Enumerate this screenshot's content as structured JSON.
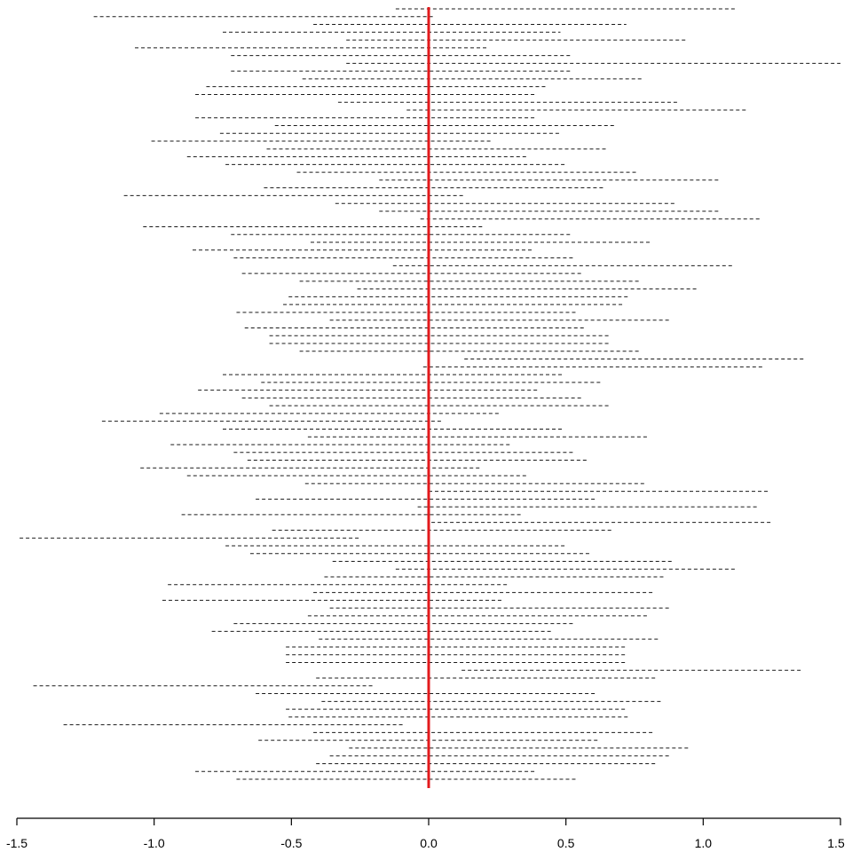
{
  "chart_data": {
    "type": "interval",
    "xlim": [
      -1.5,
      1.5
    ],
    "xticks": [
      "-1.5",
      "-1.0",
      "-0.5",
      "0.0",
      "0.5",
      "1.0",
      "1.5"
    ],
    "reference_line": {
      "x": 0.0,
      "color": "#e31a1c"
    },
    "interval_color": "#1a1a1a",
    "intervals": [
      [
        -0.12,
        1.12
      ],
      [
        -1.22,
        0.02
      ],
      [
        -0.42,
        0.72
      ],
      [
        -0.75,
        0.48
      ],
      [
        -0.3,
        0.94
      ],
      [
        -1.07,
        0.22
      ],
      [
        -0.72,
        0.52
      ],
      [
        -0.3,
        1.5
      ],
      [
        -0.72,
        0.52
      ],
      [
        -0.46,
        0.78
      ],
      [
        -0.81,
        0.43
      ],
      [
        -0.85,
        0.39
      ],
      [
        -0.33,
        0.91
      ],
      [
        -0.08,
        1.16
      ],
      [
        -0.85,
        0.39
      ],
      [
        -0.56,
        0.68
      ],
      [
        -0.76,
        0.48
      ],
      [
        -1.01,
        0.23
      ],
      [
        -0.59,
        0.65
      ],
      [
        -0.88,
        0.36
      ],
      [
        -0.74,
        0.5
      ],
      [
        -0.48,
        0.76
      ],
      [
        -0.18,
        1.06
      ],
      [
        -0.6,
        0.64
      ],
      [
        -1.11,
        0.13
      ],
      [
        -0.34,
        0.9
      ],
      [
        -0.18,
        1.06
      ],
      [
        -0.03,
        1.21
      ],
      [
        -1.04,
        0.2
      ],
      [
        -0.72,
        0.52
      ],
      [
        -0.43,
        0.81
      ],
      [
        -0.86,
        0.38
      ],
      [
        -0.71,
        0.53
      ],
      [
        -0.13,
        1.11
      ],
      [
        -0.68,
        0.56
      ],
      [
        -0.47,
        0.77
      ],
      [
        -0.26,
        0.98
      ],
      [
        -0.51,
        0.73
      ],
      [
        -0.53,
        0.71
      ],
      [
        -0.7,
        0.54
      ],
      [
        -0.36,
        0.88
      ],
      [
        -0.67,
        0.57
      ],
      [
        -0.58,
        0.66
      ],
      [
        -0.58,
        0.66
      ],
      [
        -0.47,
        0.77
      ],
      [
        0.13,
        1.37
      ],
      [
        -0.02,
        1.22
      ],
      [
        -0.75,
        0.49
      ],
      [
        -0.61,
        0.63
      ],
      [
        -0.84,
        0.4
      ],
      [
        -0.68,
        0.56
      ],
      [
        -0.58,
        0.66
      ],
      [
        -0.98,
        0.26
      ],
      [
        -1.19,
        0.05
      ],
      [
        -0.75,
        0.49
      ],
      [
        -0.44,
        0.8
      ],
      [
        -0.94,
        0.3
      ],
      [
        -0.71,
        0.53
      ],
      [
        -0.66,
        0.58
      ],
      [
        -1.05,
        0.19
      ],
      [
        -0.88,
        0.36
      ],
      [
        -0.45,
        0.79
      ],
      [
        0.0,
        1.24
      ],
      [
        -0.63,
        0.61
      ],
      [
        -0.04,
        1.2
      ],
      [
        -0.9,
        0.34
      ],
      [
        0.01,
        1.25
      ],
      [
        -0.57,
        0.67
      ],
      [
        -1.49,
        -0.25
      ],
      [
        -0.74,
        0.5
      ],
      [
        -0.65,
        0.59
      ],
      [
        -0.35,
        0.89
      ],
      [
        -0.12,
        1.12
      ],
      [
        -0.38,
        0.86
      ],
      [
        -0.95,
        0.29
      ],
      [
        -0.42,
        0.82
      ],
      [
        -0.97,
        0.27
      ],
      [
        -0.36,
        0.88
      ],
      [
        -0.44,
        0.8
      ],
      [
        -0.71,
        0.53
      ],
      [
        -0.79,
        0.45
      ],
      [
        -0.4,
        0.84
      ],
      [
        -0.52,
        0.72
      ],
      [
        -0.52,
        0.72
      ],
      [
        -0.52,
        0.72
      ],
      [
        0.12,
        1.36
      ],
      [
        -0.41,
        0.83
      ],
      [
        -1.44,
        -0.2
      ],
      [
        -0.63,
        0.61
      ],
      [
        -0.39,
        0.85
      ],
      [
        -0.52,
        0.72
      ],
      [
        -0.51,
        0.73
      ],
      [
        -1.33,
        -0.09
      ],
      [
        -0.42,
        0.82
      ],
      [
        -0.62,
        0.62
      ],
      [
        -0.29,
        0.95
      ],
      [
        -0.36,
        0.88
      ],
      [
        -0.41,
        0.83
      ],
      [
        -0.85,
        0.39
      ],
      [
        -0.7,
        0.54
      ]
    ]
  }
}
